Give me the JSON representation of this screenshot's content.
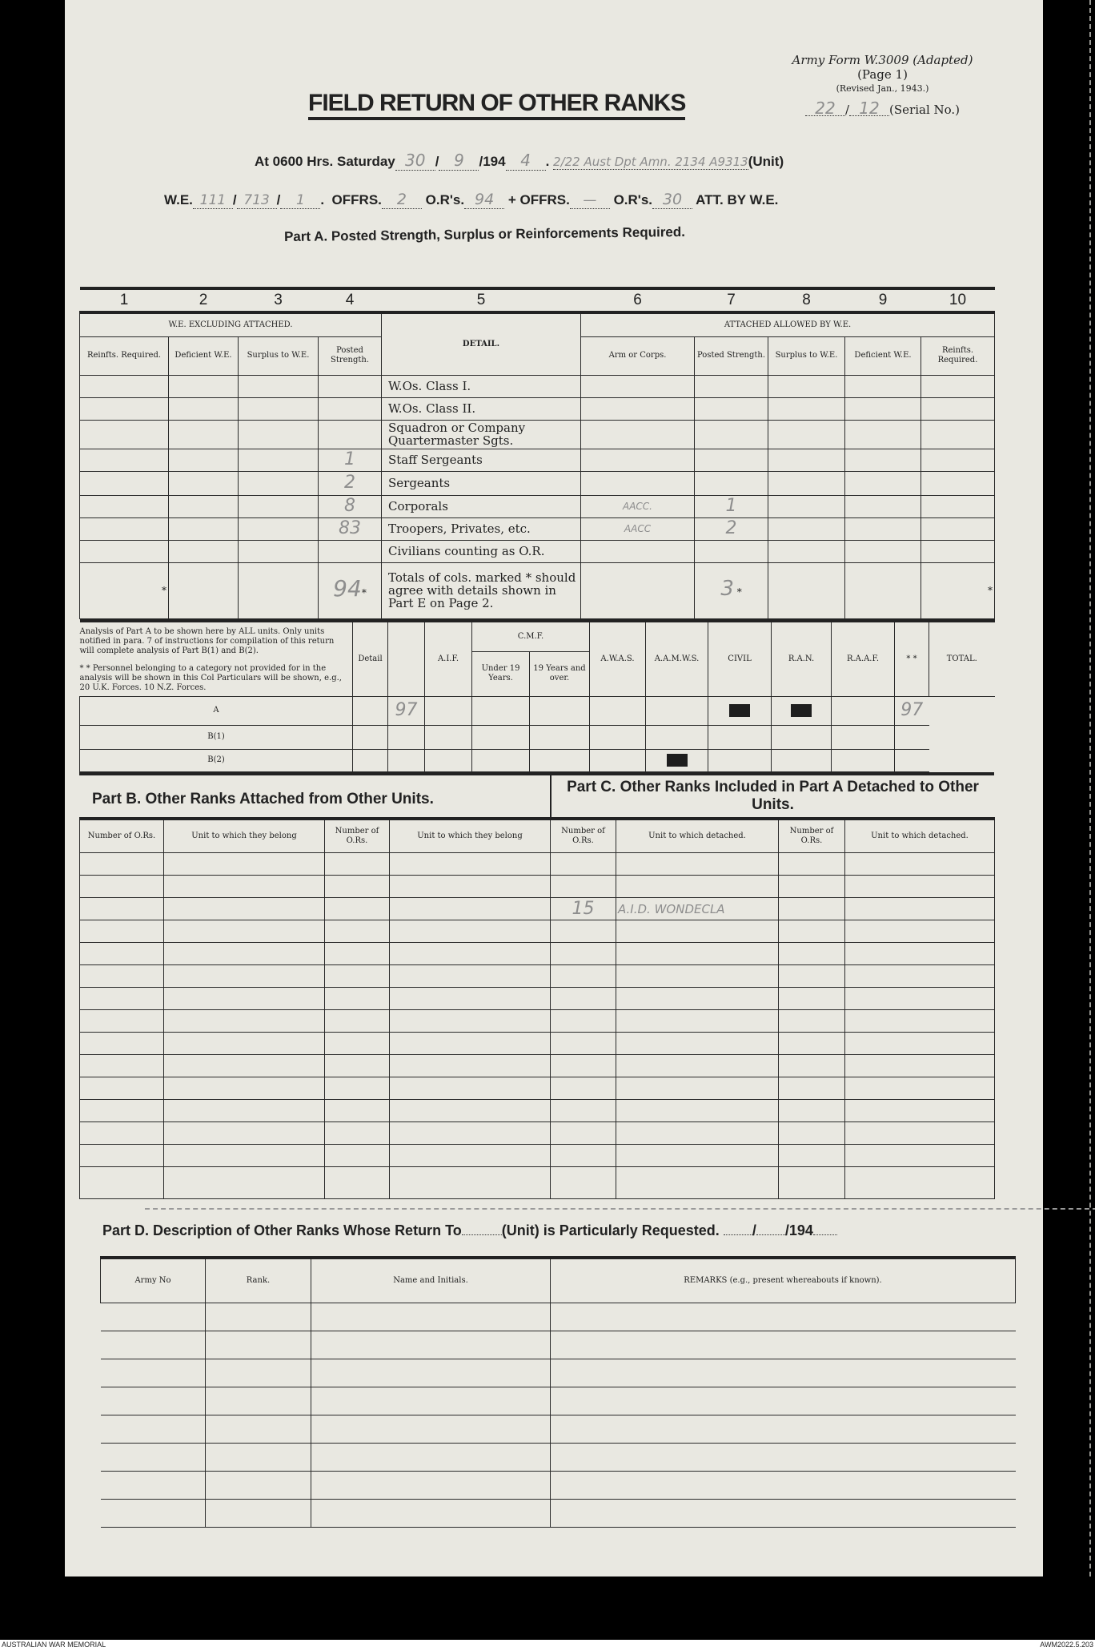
{
  "form": {
    "form_id": "Army Form W.3009 (Adapted)",
    "page": "(Page 1)",
    "revised": "(Revised Jan., 1943.)",
    "serial_a": "22",
    "serial_b": "12",
    "serial_label": "(Serial No.)",
    "title": "FIELD RETURN OF OTHER RANKS"
  },
  "header": {
    "at_label": "At 0600 Hrs. Saturday",
    "day": "30",
    "month": "9",
    "year_prefix": "/194",
    "year": "4",
    "unit_handwritten": "2/22 Aust Dpt Amn. 2134 A9313",
    "unit_label": "(Unit)",
    "we_label": "W.E.",
    "we_1": "111",
    "we_2": "713",
    "we_3": "1",
    "offrs_label": "OFFRS.",
    "offrs": "2",
    "ors_label": "O.R's.",
    "ors": "94",
    "plus": "+",
    "offrs2": "—",
    "ors2": "30",
    "att_label": "ATT. BY W.E."
  },
  "part_a": {
    "title": "Part A.  Posted Strength, Surplus or Reinforcements Required.",
    "col_numbers": [
      "1",
      "2",
      "3",
      "4",
      "5",
      "6",
      "7",
      "8",
      "9",
      "10"
    ],
    "group_left": "W.E. EXCLUDING ATTACHED.",
    "group_right": "ATTACHED ALLOWED BY W.E.",
    "detail_header": "DETAIL.",
    "left_headers": [
      "Reinfts. Required.",
      "Deficient W.E.",
      "Surplus to W.E.",
      "Posted Strength."
    ],
    "right_headers": [
      "Arm or Corps.",
      "Posted Strength.",
      "Surplus to W.E.",
      "Deficient W.E.",
      "Reinfts. Required."
    ],
    "rows": [
      {
        "detail": "W.Os. Class I.",
        "c4": "",
        "c6": "",
        "c7": ""
      },
      {
        "detail": "W.Os. Class II.",
        "c4": "",
        "c6": "",
        "c7": ""
      },
      {
        "detail": "Squadron or Company Quartermaster Sgts.",
        "c4": "",
        "c6": "",
        "c7": ""
      },
      {
        "detail": "Staff Sergeants",
        "c4": "1",
        "c6": "",
        "c7": ""
      },
      {
        "detail": "Sergeants",
        "c4": "2",
        "c6": "",
        "c7": ""
      },
      {
        "detail": "Corporals",
        "c4": "8",
        "c6": "AACC.",
        "c7": "1"
      },
      {
        "detail": "Troopers, Privates, etc.",
        "c4": "83",
        "c6": "AACC",
        "c7": "2"
      },
      {
        "detail": "Civilians counting as O.R.",
        "c4": "",
        "c6": "",
        "c7": ""
      }
    ],
    "totals": {
      "detail": "Totals of cols. marked * should agree with details shown in Part E on Page 2.",
      "c4": "94",
      "c7": "3",
      "star": "*"
    }
  },
  "analysis": {
    "note1": "Analysis of Part A to be shown here by ALL units. Only units notified in para. 7 of instructions for compilation of this return will complete analysis of Part B(1) and B(2).",
    "note2": "* * Personnel belonging to a category not provided for in the analysis will be shown in this Col Particulars will be shown, e.g., 20 U.K. Forces. 10 N.Z. Forces.",
    "detail": "Detail",
    "aif": "A.I.F.",
    "cmp": "C.M.F.",
    "under19": "Under 19 Years.",
    "over19": "19 Years and over.",
    "awas": "A.W.A.S.",
    "aamws": "A.A.M.W.S.",
    "civil": "CIVIL",
    "ran": "R.A.N.",
    "raaf": "R.A.A.F.",
    "other": "* *",
    "total": "TOTAL.",
    "rows": [
      "A",
      "B(1)",
      "B(2)"
    ],
    "a_aif": "97",
    "a_total": "97"
  },
  "part_b": {
    "title": "Part B.  Other Ranks Attached from Other Units.",
    "headers": [
      "Number of O.Rs.",
      "Unit to which they belong",
      "Number of O.Rs.",
      "Unit to which they belong"
    ]
  },
  "part_c": {
    "title": "Part C.  Other Ranks Included in Part A Detached to Other Units.",
    "headers": [
      "Number of O.Rs.",
      "Unit to which detached.",
      "Number of O.Rs.",
      "Unit to which detached."
    ],
    "entry_number": "15",
    "entry_unit": "A.I.D. WONDECLA"
  },
  "part_d": {
    "title_a": "Part D.  Description of Other Ranks Whose Return To",
    "title_b": "(Unit) is Particularly Requested.",
    "title_c": "/",
    "title_d": "/194",
    "headers": [
      "Army No",
      "Rank.",
      "Name and Initials.",
      "REMARKS (e.g., present whereabouts if known)."
    ]
  },
  "footer": {
    "left": "AUSTRALIAN WAR MEMORIAL",
    "right": "AWM2022.5.203"
  },
  "colors": {
    "paper": "#e9e8e1",
    "ink": "#222222",
    "pencil": "#8d8d8d",
    "background": "#000000"
  }
}
